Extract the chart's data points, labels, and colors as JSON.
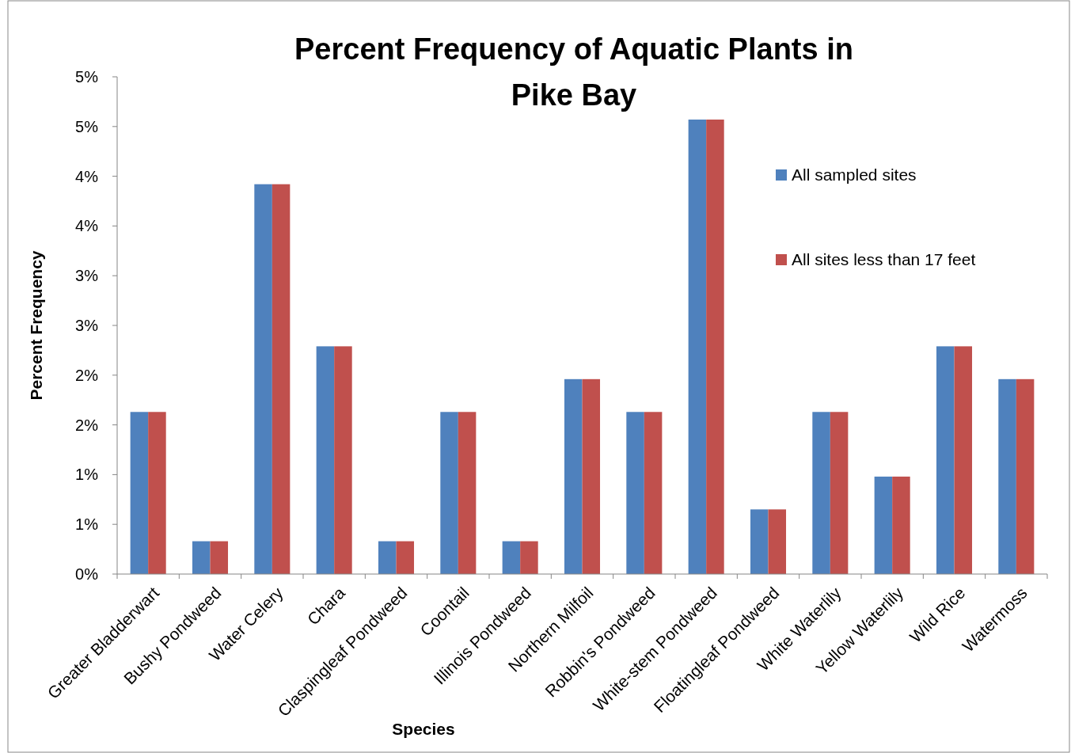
{
  "chart_data": {
    "type": "bar",
    "title": "Percent Frequency of Aquatic Plants in Pike Bay",
    "xlabel": "Species",
    "ylabel": "Percent Frequency",
    "categories": [
      "Greater Bladderwart",
      "Bushy Pondweed",
      "Water Celery",
      "Chara",
      "Claspingleaf Pondweed",
      "Coontail",
      "Illinois Pondweed",
      "Northern Milfoil",
      "Robbin's Pondweed",
      "White-stem Pondweed",
      "Floatingleaf Pondweed",
      "White Waterlily",
      "Yellow Waterlily",
      "Wild Rice",
      "Watermoss"
    ],
    "series": [
      {
        "name": "All sampled sites",
        "color": "#4f81bd",
        "values": [
          1.63,
          0.33,
          3.92,
          2.29,
          0.33,
          1.63,
          0.33,
          1.96,
          1.63,
          4.57,
          0.65,
          1.63,
          0.98,
          2.29,
          1.96
        ]
      },
      {
        "name": "All sites less than 17 feet",
        "color": "#c0504d",
        "values": [
          1.63,
          0.33,
          3.92,
          2.29,
          0.33,
          1.63,
          0.33,
          1.96,
          1.63,
          4.57,
          0.65,
          1.63,
          0.98,
          2.29,
          1.96
        ]
      }
    ],
    "ylim": [
      0,
      5
    ],
    "yticks": [
      {
        "value": 0,
        "label": "0%"
      },
      {
        "value": 0.5,
        "label": "1%"
      },
      {
        "value": 1,
        "label": "1%"
      },
      {
        "value": 1.5,
        "label": "2%"
      },
      {
        "value": 2,
        "label": "2%"
      },
      {
        "value": 2.5,
        "label": "3%"
      },
      {
        "value": 3,
        "label": "3%"
      },
      {
        "value": 3.5,
        "label": "4%"
      },
      {
        "value": 4,
        "label": "4%"
      },
      {
        "value": 4.5,
        "label": "5%"
      },
      {
        "value": 5,
        "label": "5%"
      }
    ],
    "grid": false,
    "legend": "top right"
  }
}
